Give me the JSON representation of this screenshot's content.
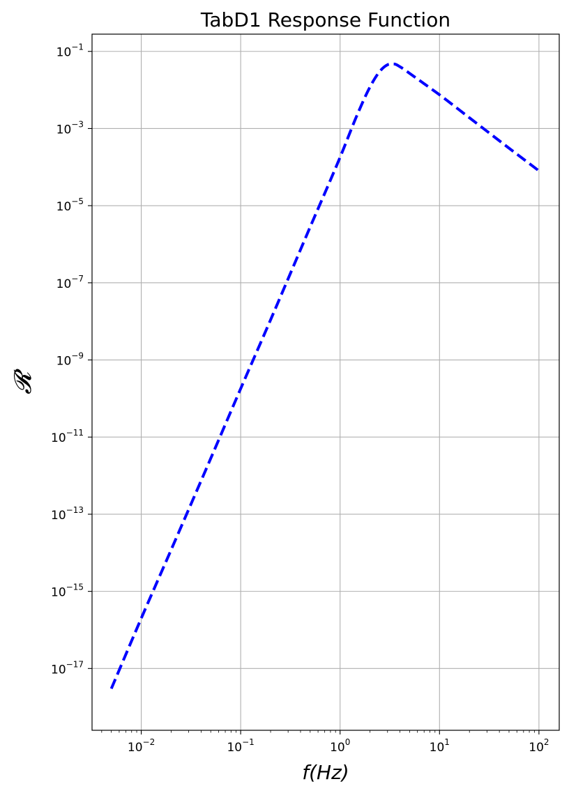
{
  "chart_data": {
    "type": "line",
    "title": "TabD1 Response Function",
    "xlabel": "f(Hz)",
    "ylabel": "𝓡",
    "xscale": "log",
    "yscale": "log",
    "xlim": [
      0.0032,
      160
    ],
    "ylim": [
      2.5e-19,
      0.28
    ],
    "grid": true,
    "x_ticks": [
      {
        "base": "10",
        "exp": "−2",
        "value": 0.01
      },
      {
        "base": "10",
        "exp": "−1",
        "value": 0.1
      },
      {
        "base": "10",
        "exp": "0",
        "value": 1
      },
      {
        "base": "10",
        "exp": "1",
        "value": 10
      },
      {
        "base": "10",
        "exp": "2",
        "value": 100
      }
    ],
    "y_ticks": [
      {
        "base": "10",
        "exp": "−1",
        "value": 0.1
      },
      {
        "base": "10",
        "exp": "−3",
        "value": 0.001
      },
      {
        "base": "10",
        "exp": "−5",
        "value": 1e-05
      },
      {
        "base": "10",
        "exp": "−7",
        "value": 1e-07
      },
      {
        "base": "10",
        "exp": "−9",
        "value": 1e-09
      },
      {
        "base": "10",
        "exp": "−11",
        "value": 1e-11
      },
      {
        "base": "10",
        "exp": "−13",
        "value": 1e-13
      },
      {
        "base": "10",
        "exp": "−15",
        "value": 1e-15
      },
      {
        "base": "10",
        "exp": "−17",
        "value": 1e-17
      }
    ],
    "series": [
      {
        "color": "#0000ff",
        "style": "dashed",
        "x": [
          0.005,
          0.01,
          0.02,
          0.05,
          0.1,
          0.2,
          0.5,
          1,
          1.5,
          2,
          2.5,
          3,
          3.5,
          4,
          5,
          7,
          10,
          20,
          50,
          100
        ],
        "y": [
          3e-18,
          2e-16,
          1.2e-14,
          2.8e-12,
          1.8e-10,
          1.1e-08,
          2.8e-06,
          0.00018,
          0.0024,
          0.012,
          0.03,
          0.045,
          0.047,
          0.04,
          0.027,
          0.0145,
          0.0075,
          0.0019,
          0.00031,
          8e-05
        ]
      }
    ]
  }
}
